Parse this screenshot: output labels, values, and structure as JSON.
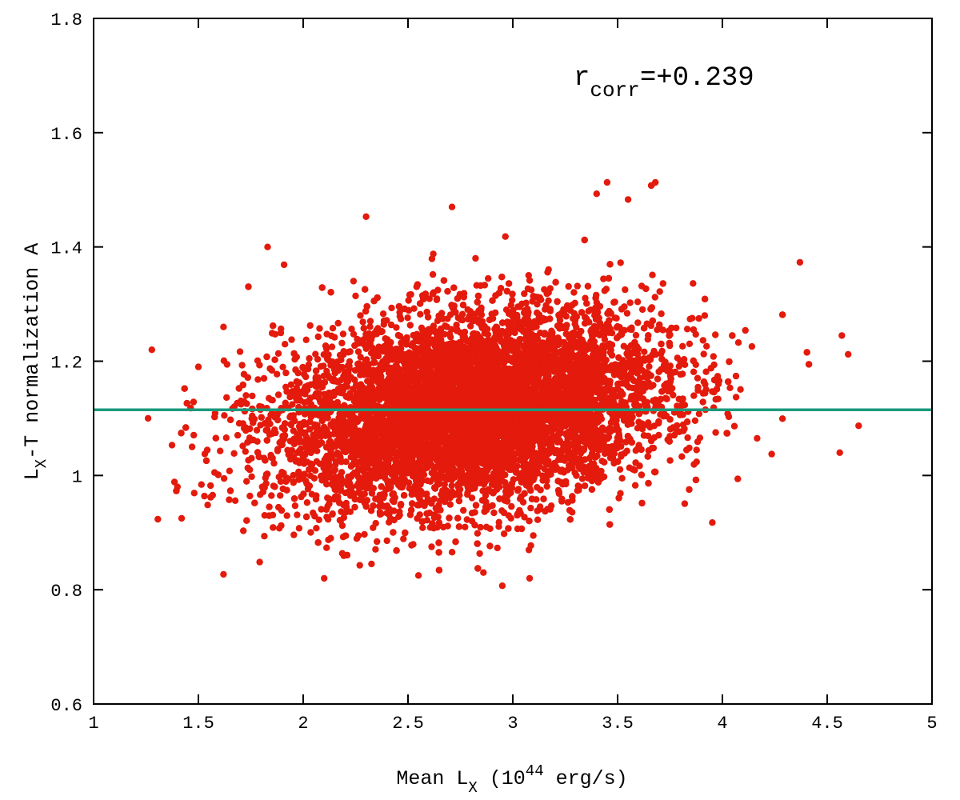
{
  "chart_data": {
    "type": "scatter",
    "title": "",
    "xlabel": {
      "prefix": "Mean L",
      "sub": "X",
      "middle": " (10",
      "sup": "44",
      "suffix": " erg/s)"
    },
    "ylabel": {
      "prefix": "L",
      "sub": "X",
      "suffix": "-T normalization A"
    },
    "xlim": [
      1,
      5
    ],
    "ylim": [
      0.6,
      1.8
    ],
    "x_ticks": [
      "1",
      "1.5",
      "2",
      "2.5",
      "3",
      "3.5",
      "4",
      "4.5",
      "5"
    ],
    "y_ticks": [
      "0.6",
      "0.8",
      "1",
      "1.2",
      "1.4",
      "1.6",
      "1.8"
    ],
    "grid": false,
    "annotation": {
      "prefix": "r",
      "sub": "corr",
      "suffix": "=+0.239"
    },
    "series": [
      {
        "color": "#e31a0c",
        "marker": "circle",
        "points_approx": {
          "distribution": "bivariate normal cloud",
          "center_x": 2.8,
          "center_y": 1.115,
          "sd_x": 0.45,
          "sd_y": 0.085,
          "correlation": 0.239,
          "x_range": [
            1.26,
            4.65
          ],
          "y_range": [
            0.807,
            1.513
          ]
        },
        "points": [
          {
            "x": 1.26,
            "y": 1.1
          },
          {
            "x": 1.4,
            "y": 0.98
          },
          {
            "x": 1.42,
            "y": 0.925
          },
          {
            "x": 1.47,
            "y": 1.05
          },
          {
            "x": 1.5,
            "y": 1.19
          },
          {
            "x": 1.62,
            "y": 0.827
          },
          {
            "x": 1.62,
            "y": 1.26
          },
          {
            "x": 1.83,
            "y": 1.4
          },
          {
            "x": 2.1,
            "y": 0.82
          },
          {
            "x": 2.3,
            "y": 1.453
          },
          {
            "x": 2.55,
            "y": 0.825
          },
          {
            "x": 2.71,
            "y": 1.47
          },
          {
            "x": 2.86,
            "y": 0.83
          },
          {
            "x": 2.95,
            "y": 0.807
          },
          {
            "x": 3.08,
            "y": 0.82
          },
          {
            "x": 3.45,
            "y": 1.513
          },
          {
            "x": 3.4,
            "y": 1.493
          },
          {
            "x": 3.68,
            "y": 1.513
          },
          {
            "x": 3.55,
            "y": 1.483
          },
          {
            "x": 4.37,
            "y": 1.373
          },
          {
            "x": 4.6,
            "y": 1.212
          },
          {
            "x": 4.65,
            "y": 1.087
          },
          {
            "x": 4.56,
            "y": 1.04
          },
          {
            "x": 4.57,
            "y": 1.245
          }
        ]
      }
    ],
    "reference_line": {
      "y": 1.115,
      "color": "#1a9a7c"
    }
  }
}
